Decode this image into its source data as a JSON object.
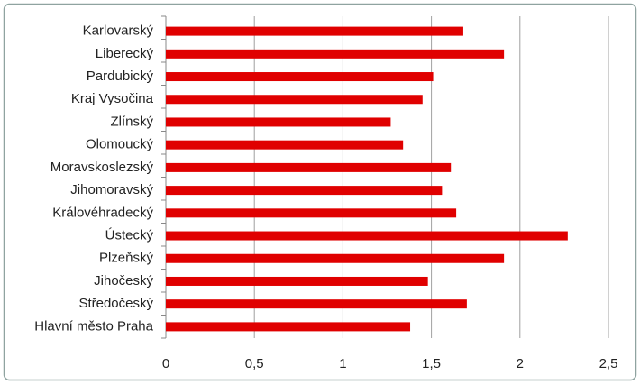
{
  "chart_data": {
    "type": "bar",
    "orientation": "horizontal",
    "categories": [
      "Karlovarský",
      "Liberecký",
      "Pardubický",
      "Kraj Vysočina",
      "Zlínský",
      "Olomoucký",
      "Moravskoslezský",
      "Jihomoravský",
      "Královéhradecký",
      "Ústecký",
      "Plzeňský",
      "Jihočeský",
      "Středočeský",
      "Hlavní město Praha"
    ],
    "values": [
      1.68,
      1.91,
      1.51,
      1.45,
      1.27,
      1.34,
      1.61,
      1.56,
      1.64,
      2.27,
      1.91,
      1.48,
      1.7,
      1.38
    ],
    "color": "#e00000",
    "xlim": [
      0,
      2.5
    ],
    "xticks": [
      0,
      {
        "value": 0.5,
        "label": "0,5"
      },
      1,
      {
        "value": 1.5,
        "label": "1,5"
      },
      2,
      {
        "value": 2.5,
        "label": "2,5"
      }
    ],
    "grid": true
  }
}
